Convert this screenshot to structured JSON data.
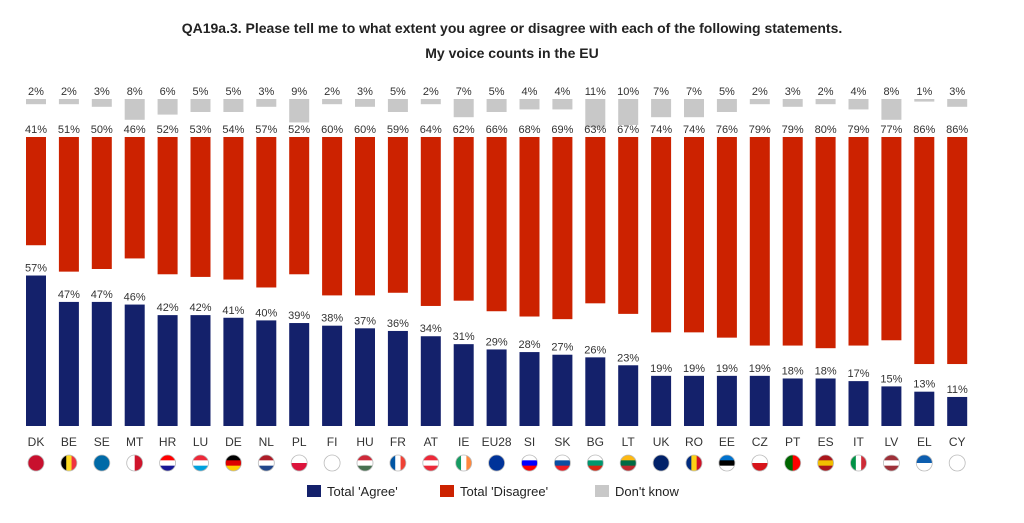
{
  "title": "QA19a.3. Please tell me to what extent you agree or disagree with each of the following statements.",
  "subtitle": "My voice counts in the EU",
  "colors": {
    "agree": "#14216b",
    "disagree": "#cc2200",
    "dontknow": "#c8c8c8"
  },
  "chart_data": {
    "type": "bar",
    "title": "QA19a.3. Please tell me to what extent you agree or disagree with each of the following statements.",
    "subtitle": "My voice counts in the EU",
    "categories": [
      "DK",
      "BE",
      "SE",
      "MT",
      "HR",
      "LU",
      "DE",
      "NL",
      "PL",
      "FI",
      "HU",
      "FR",
      "AT",
      "IE",
      "EU28",
      "SI",
      "SK",
      "BG",
      "LT",
      "UK",
      "RO",
      "EE",
      "CZ",
      "PT",
      "ES",
      "IT",
      "LV",
      "EL",
      "CY"
    ],
    "series": [
      {
        "name": "Total 'Agree'",
        "values": [
          57,
          47,
          47,
          46,
          42,
          42,
          41,
          40,
          39,
          38,
          37,
          36,
          34,
          31,
          29,
          28,
          27,
          26,
          23,
          19,
          19,
          19,
          19,
          18,
          18,
          17,
          15,
          13,
          11
        ]
      },
      {
        "name": "Total 'Disagree'",
        "values": [
          41,
          51,
          50,
          46,
          52,
          53,
          54,
          57,
          52,
          60,
          60,
          59,
          64,
          62,
          66,
          68,
          69,
          63,
          67,
          74,
          74,
          76,
          79,
          79,
          80,
          79,
          77,
          86,
          86
        ]
      },
      {
        "name": "Don't know",
        "values": [
          2,
          2,
          3,
          8,
          6,
          5,
          5,
          3,
          9,
          2,
          3,
          5,
          2,
          7,
          5,
          4,
          4,
          11,
          10,
          7,
          7,
          5,
          2,
          3,
          2,
          4,
          8,
          1,
          3
        ]
      }
    ],
    "unit": "%",
    "legend_position": "bottom",
    "flags": [
      "dk-flag",
      "be-flag",
      "se-flag",
      "mt-flag",
      "hr-flag",
      "lu-flag",
      "de-flag",
      "nl-flag",
      "pl-flag",
      "fi-flag",
      "hu-flag",
      "fr-flag",
      "at-flag",
      "ie-flag",
      "eu-flag",
      "si-flag",
      "sk-flag",
      "bg-flag",
      "lt-flag",
      "uk-flag",
      "ro-flag",
      "ee-flag",
      "cz-flag",
      "pt-flag",
      "es-flag",
      "it-flag",
      "lv-flag",
      "gr-flag",
      "cy-flag"
    ]
  }
}
